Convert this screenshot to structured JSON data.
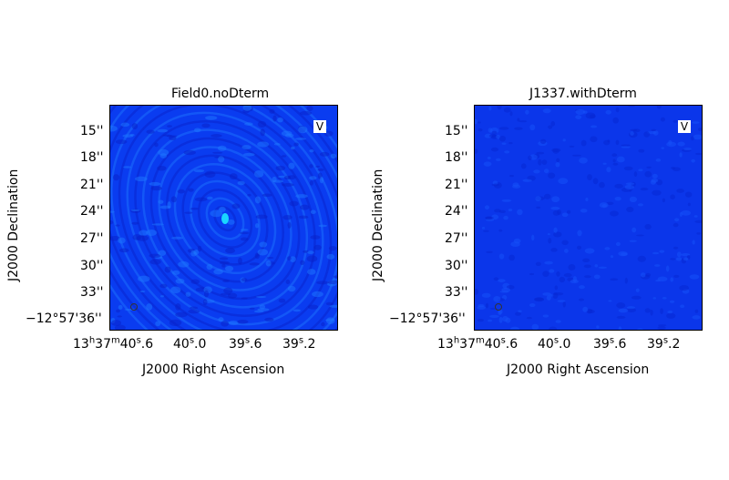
{
  "panels": [
    {
      "title": "Field0.noDterm",
      "stokes": "V",
      "xlabel": "J2000 Right Ascension",
      "ylabel": "J2000 Declination",
      "yticks": [
        "15''",
        "18''",
        "21''",
        "24''",
        "27''",
        "30''",
        "33''",
        "−12°57'36''"
      ],
      "xticks": [
        "13h37m40.6s",
        "40s.0",
        "39s.6",
        "39s.2"
      ],
      "colors": {
        "base": "#0a3cf0",
        "light": "#1e78ff",
        "dark": "#0820c8",
        "peak": "#19d6ff"
      }
    },
    {
      "title": "J1337.withDterm",
      "stokes": "V",
      "xlabel": "J2000 Right Ascension",
      "ylabel": "J2000 Declination",
      "yticks": [
        "15''",
        "18''",
        "21''",
        "24''",
        "27''",
        "30''",
        "33''",
        "−12°57'36''"
      ],
      "xticks": [
        "13h37m40.6s",
        "40s.0",
        "39s.6",
        "39s.2"
      ],
      "colors": {
        "base": "#0b36ea",
        "light": "#1650f8",
        "dark": "#0828d4"
      }
    }
  ]
}
